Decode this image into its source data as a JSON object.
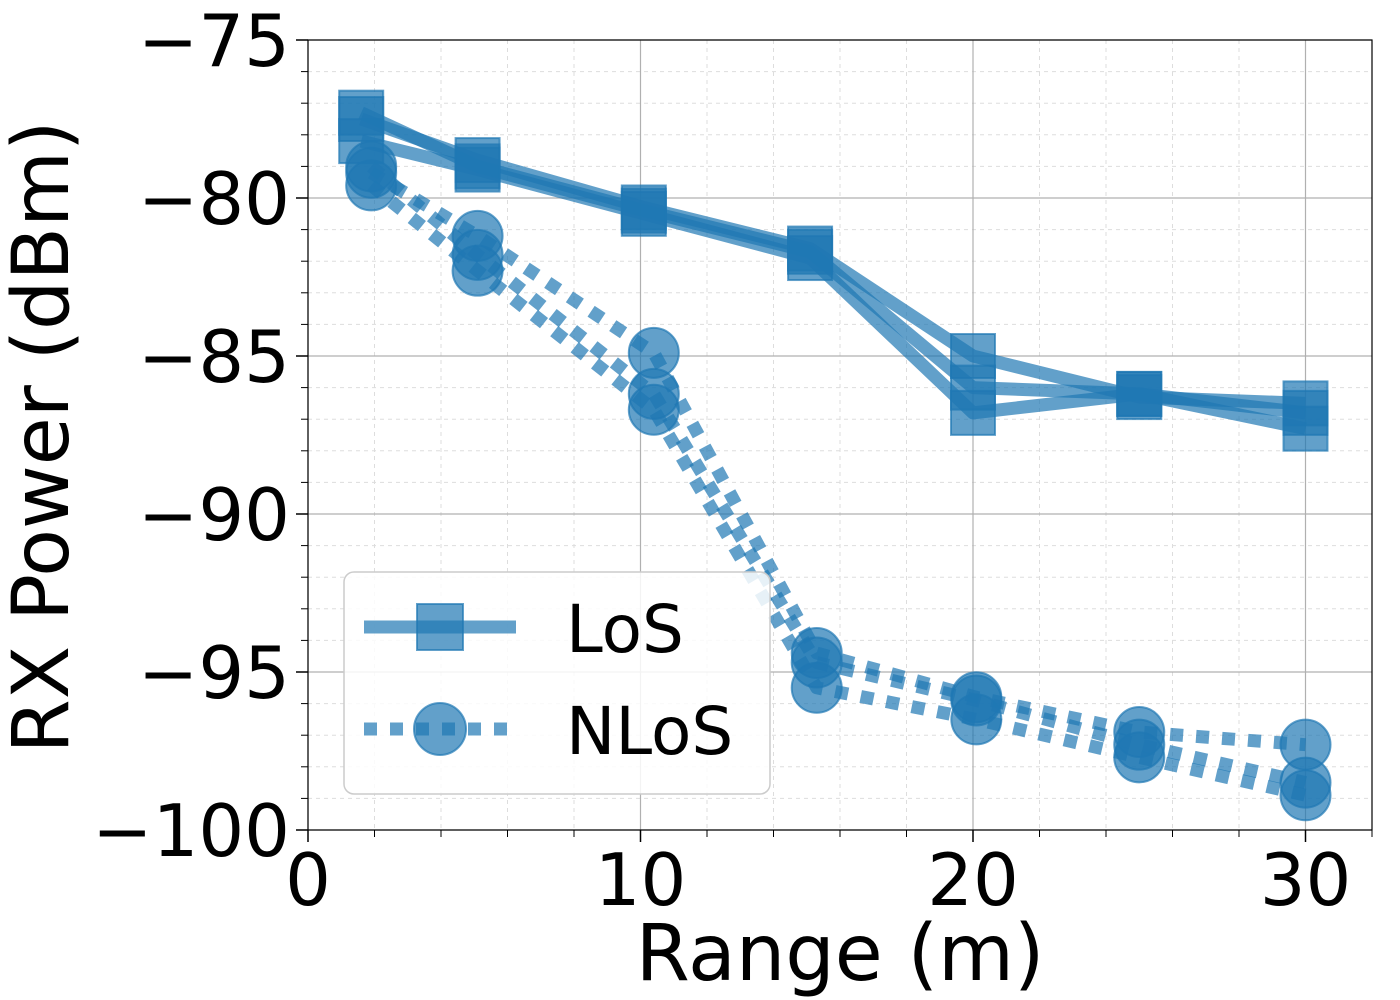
{
  "chart_data": {
    "type": "line",
    "xlabel": "Range (m)",
    "ylabel": "RX Power (dBm)",
    "xlim": [
      0,
      32
    ],
    "ylim": [
      -100,
      -75
    ],
    "xticks": [
      0,
      10,
      20,
      30
    ],
    "xtick_labels": [
      "0",
      "10",
      "20",
      "30"
    ],
    "yticks": [
      -100,
      -95,
      -90,
      -85,
      -80,
      -75
    ],
    "ytick_labels": [
      "−100",
      "−95",
      "−90",
      "−85",
      "−80",
      "−75"
    ],
    "grid": true,
    "legend_position": "lower-left",
    "color": "#1f77b4",
    "series": [
      {
        "name": "LoS",
        "group": "LoS",
        "show_legend": true,
        "x": [
          1.6,
          5.1,
          10.1,
          15.1,
          20.0,
          25.0,
          30.0
        ],
        "y": [
          -77.5,
          -78.8,
          -80.3,
          -81.6,
          -85.0,
          -86.3,
          -86.5
        ]
      },
      {
        "name": "LoS",
        "group": "LoS",
        "show_legend": false,
        "x": [
          1.6,
          5.1,
          10.1,
          15.1,
          20.0,
          25.0,
          30.0
        ],
        "y": [
          -78.2,
          -79.1,
          -80.5,
          -81.9,
          -86.8,
          -86.2,
          -87.3
        ]
      },
      {
        "name": "LoS",
        "group": "LoS",
        "show_legend": false,
        "x": [
          1.6,
          5.1,
          10.1,
          15.1,
          20.0,
          25.0,
          30.0
        ],
        "y": [
          -77.3,
          -79.0,
          -80.4,
          -81.7,
          -86.0,
          -86.2,
          -86.8
        ]
      },
      {
        "name": "NLoS",
        "group": "NLoS",
        "show_legend": true,
        "x": [
          1.9,
          5.1,
          10.4,
          15.3,
          20.1,
          25.0,
          30.0
        ],
        "y": [
          -79.2,
          -81.2,
          -84.9,
          -94.4,
          -95.8,
          -96.9,
          -97.3
        ]
      },
      {
        "name": "NLoS",
        "group": "NLoS",
        "show_legend": false,
        "x": [
          1.9,
          5.1,
          10.4,
          15.3,
          20.1,
          25.0,
          30.0
        ],
        "y": [
          -79.6,
          -82.3,
          -86.7,
          -95.5,
          -96.5,
          -97.7,
          -98.9
        ]
      },
      {
        "name": "NLoS",
        "group": "NLoS",
        "show_legend": false,
        "x": [
          1.9,
          5.1,
          10.4,
          15.3,
          20.1,
          25.0,
          30.0
        ],
        "y": [
          -79.0,
          -81.8,
          -86.2,
          -94.7,
          -95.9,
          -97.3,
          -98.5
        ]
      }
    ],
    "legend": [
      {
        "label": "LoS",
        "marker": "square",
        "line": "solid"
      },
      {
        "label": "NLoS",
        "marker": "circle",
        "line": "dotted"
      }
    ]
  }
}
